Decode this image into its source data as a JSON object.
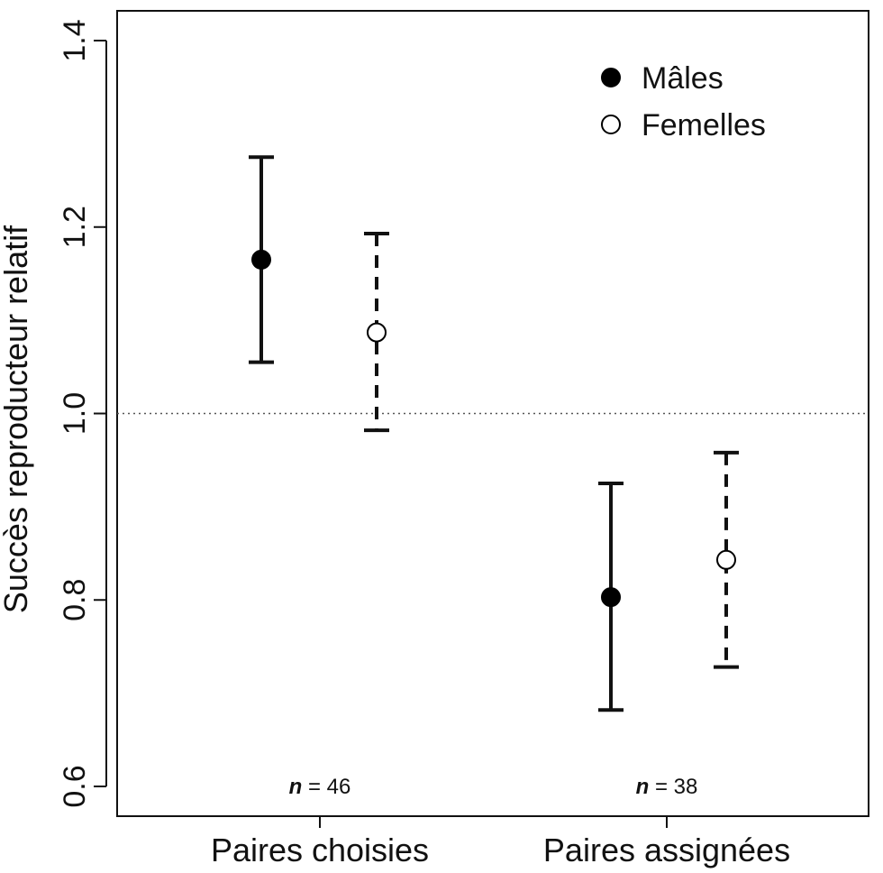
{
  "chart_data": {
    "type": "scatter",
    "subtype": "point-with-error-bars",
    "title": "",
    "xlabel": "",
    "ylabel": "Succès reproducteur relatif",
    "ylim": [
      0.6,
      1.4
    ],
    "yticks": [
      "0.6",
      "0.8",
      "1.0",
      "1.2",
      "1.4"
    ],
    "reference_line": {
      "y": 1.0,
      "style": "dotted"
    },
    "grid": false,
    "legend_position": "top-right",
    "categories": [
      "Paires choisies",
      "Paires assignées"
    ],
    "sample_sizes": [
      {
        "prefix": "n",
        "text": " = 46"
      },
      {
        "prefix": "n",
        "text": " = 38"
      }
    ],
    "series": [
      {
        "name": "Mâles",
        "marker": "filled-circle",
        "error_style": "solid",
        "values": [
          1.165,
          0.803
        ],
        "lower": [
          1.055,
          0.682
        ],
        "upper": [
          1.275,
          0.925
        ]
      },
      {
        "name": "Femelles",
        "marker": "open-circle",
        "error_style": "dashed",
        "values": [
          1.087,
          0.843
        ],
        "lower": [
          0.982,
          0.728
        ],
        "upper": [
          1.193,
          0.958
        ]
      }
    ]
  }
}
